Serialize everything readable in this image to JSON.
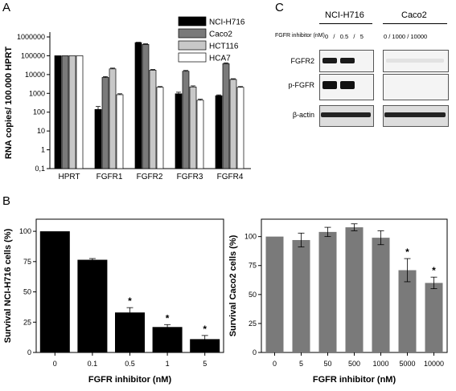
{
  "panels": {
    "A": "A",
    "B": "B",
    "C": "C"
  },
  "chart_data": [
    {
      "type": "bar",
      "panel": "A",
      "ylabel": "RNA copies/ 100.000 HPRT",
      "yscale": "log",
      "ylim": [
        0.1,
        1000000
      ],
      "yticks": [
        "0,1",
        "1",
        "10",
        "100",
        "1000",
        "10000",
        "100000",
        "1000000"
      ],
      "categories": [
        "HPRT",
        "FGFR1",
        "FGFR2",
        "FGFR3",
        "FGFR4"
      ],
      "legend_position": "top-right",
      "series": [
        {
          "name": "NCI-H716",
          "color": "#000000",
          "values": [
            100000,
            140,
            500000,
            950,
            750
          ]
        },
        {
          "name": "Caco2",
          "color": "#7a7a7a",
          "values": [
            100000,
            7000,
            400000,
            15000,
            38000
          ]
        },
        {
          "name": "HCT116",
          "color": "#c8c8c8",
          "values": [
            100000,
            20000,
            17000,
            2200,
            5500
          ]
        },
        {
          "name": "HCA7",
          "color": "#ffffff",
          "values": [
            100000,
            850,
            2100,
            430,
            2100
          ]
        }
      ],
      "errors": [
        [
          0,
          60,
          20000,
          200,
          80
        ],
        [
          0,
          800,
          30000,
          1500,
          4000
        ],
        [
          0,
          2000,
          1500,
          300,
          500
        ],
        [
          0,
          100,
          200,
          60,
          200
        ]
      ]
    },
    {
      "type": "bar",
      "panel": "B-left",
      "xlabel": "FGFR inhibitor (nM)",
      "ylabel": "Survival NCI-H716 cells (%)",
      "ylim": [
        0,
        110
      ],
      "yticks": [
        "0",
        "25",
        "50",
        "75",
        "100"
      ],
      "categories": [
        "0",
        "0.1",
        "0.5",
        "1",
        "5"
      ],
      "values": [
        100,
        76.5,
        33,
        21,
        11
      ],
      "errors": [
        0,
        1,
        4,
        2,
        3
      ],
      "significance": [
        "",
        "",
        "*",
        "*",
        "*"
      ],
      "color": "#000000"
    },
    {
      "type": "bar",
      "panel": "B-right",
      "xlabel": "FGFR inhibitor (nM)",
      "ylabel": "Survival Caco2 cells (%)",
      "ylim": [
        0,
        115
      ],
      "yticks": [
        "0",
        "25",
        "50",
        "75",
        "100"
      ],
      "categories": [
        "0",
        "5",
        "50",
        "500",
        "1000",
        "5000",
        "10000"
      ],
      "values": [
        100,
        97,
        104,
        108,
        99,
        71,
        60
      ],
      "errors": [
        0,
        6,
        4,
        3,
        6,
        10,
        5
      ],
      "significance": [
        "",
        "",
        "",
        "",
        "",
        "*",
        "*"
      ],
      "color": "#7a7a7a"
    }
  ],
  "blot": {
    "cell_lines": [
      "NCI-H716",
      "Caco2"
    ],
    "inhibitor_label": "FGFR inhibitor (nM)",
    "doses_left": "0   /   0.5   /   5",
    "doses_right": "0 / 1000 / 10000",
    "rows": [
      "FGFR2",
      "p-FGFR",
      "β-actin"
    ]
  }
}
